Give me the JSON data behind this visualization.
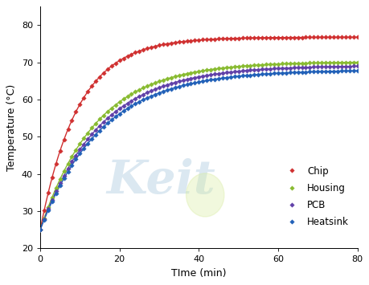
{
  "title": "",
  "xlabel": "TIme (min)",
  "ylabel": "Temperature (°C)",
  "xlim": [
    0,
    80
  ],
  "ylim": [
    20,
    85
  ],
  "xticks": [
    0,
    20,
    40,
    60,
    80
  ],
  "yticks": [
    20,
    30,
    40,
    50,
    60,
    70,
    80
  ],
  "series": [
    {
      "label": "Chip",
      "color": "#d03030",
      "T_start": 25.0,
      "T_end": 76.8,
      "tau": 9.5
    },
    {
      "label": "Housing",
      "color": "#88bb30",
      "T_start": 25.0,
      "T_end": 70.2,
      "tau": 14.0
    },
    {
      "label": "PCB",
      "color": "#6040a8",
      "T_start": 25.0,
      "T_end": 69.2,
      "tau": 15.0
    },
    {
      "label": "Heatsink",
      "color": "#2060b8",
      "T_start": 25.0,
      "T_end": 68.0,
      "tau": 15.5
    }
  ],
  "marker": "D",
  "markersize": 2.8,
  "linewidth": 1.0,
  "background_color": "#ffffff",
  "watermark_text": "Keit",
  "watermark_color": "#b0cce0",
  "watermark_alpha": 0.45,
  "watermark_fontsize": 42,
  "legend_fontsize": 8.5,
  "axis_fontsize": 9,
  "tick_fontsize": 8
}
